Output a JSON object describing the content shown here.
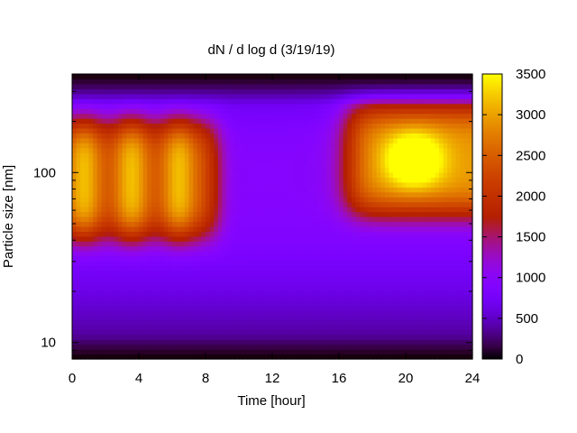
{
  "chart_data": {
    "type": "heatmap",
    "title": "dN / d log d (3/19/19)",
    "xlabel": "Time [hour]",
    "ylabel": "Particle size [nm]",
    "xlim": [
      0,
      24
    ],
    "ylim": [
      8,
      380
    ],
    "yscale": "log",
    "x_ticks": [
      "0",
      "4",
      "8",
      "12",
      "16",
      "20",
      "24"
    ],
    "y_ticks": [
      "10",
      "100"
    ],
    "colorbar": {
      "range": [
        0,
        3500
      ],
      "ticks": [
        "0",
        "500",
        "1000",
        "1500",
        "2000",
        "2500",
        "3000",
        "3500"
      ],
      "palette": "black-purple-red-orange-yellow"
    },
    "features": [
      {
        "time_start": 0,
        "time_end": 9,
        "size_low": 40,
        "size_high": 210,
        "peak_value": 2300
      },
      {
        "time_start": 16,
        "time_end": 24,
        "size_low": 55,
        "size_high": 270,
        "peak_value": 3300
      },
      {
        "background_mid_sizes_value": 900,
        "background_large_sizes_value": 300
      }
    ]
  }
}
